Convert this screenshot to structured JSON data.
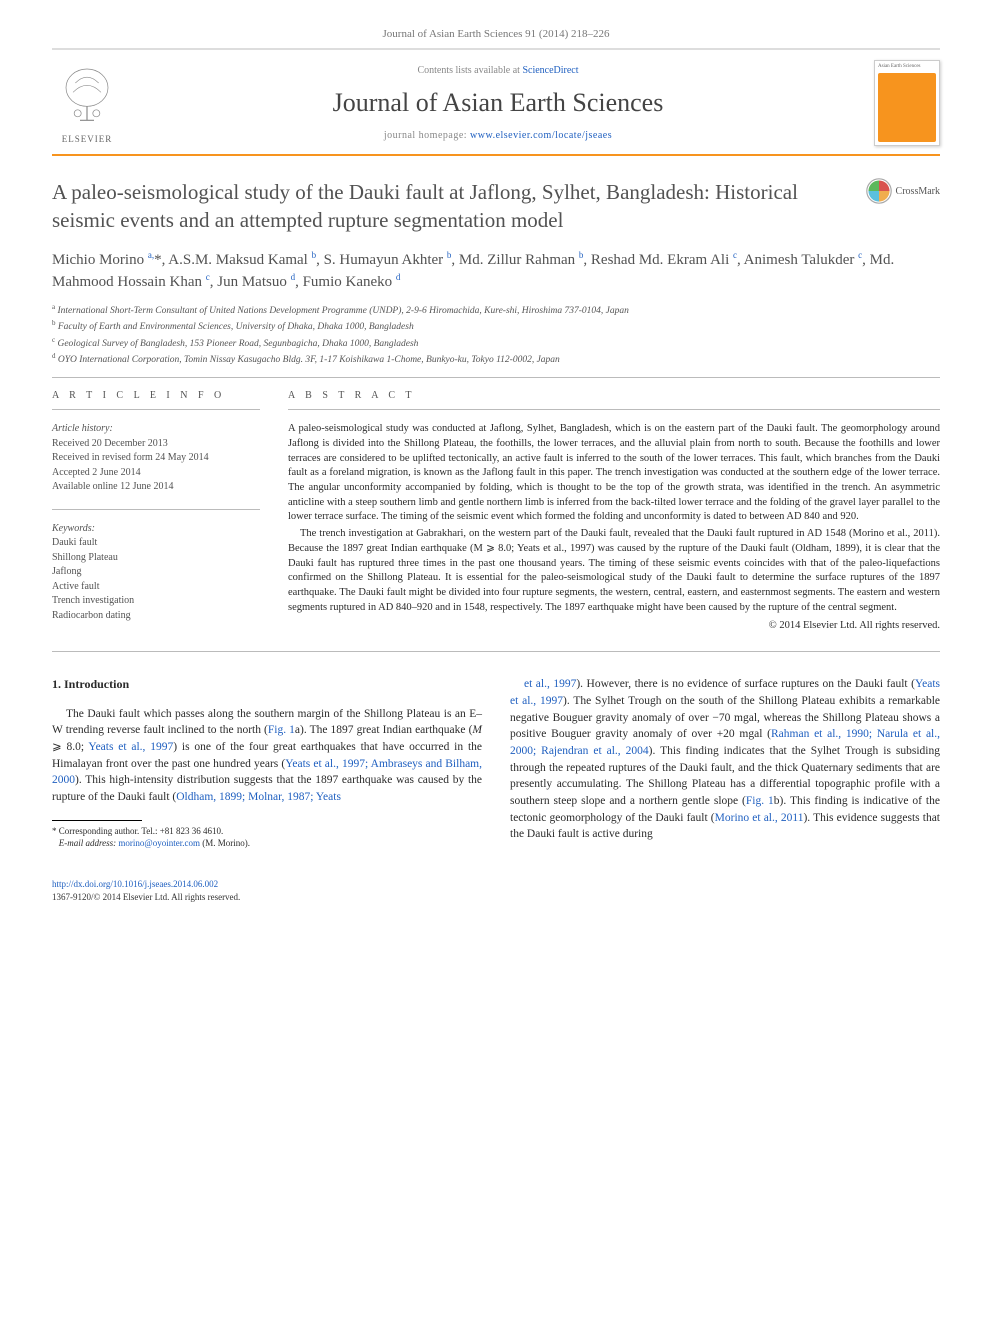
{
  "journal_ref": "Journal of Asian Earth Sciences 91 (2014) 218–226",
  "header": {
    "contents_prefix": "Contents lists available at ",
    "contents_link": "ScienceDirect",
    "journal_title": "Journal of Asian Earth Sciences",
    "homepage_prefix": "journal homepage: ",
    "homepage_link": "www.elsevier.com/locate/jseaes",
    "publisher": "ELSEVIER",
    "cover_label": "Asian Earth Sciences"
  },
  "crossmark": "CrossMark",
  "title": "A paleo-seismological study of the Dauki fault at Jaflong, Sylhet, Bangladesh: Historical seismic events and an attempted rupture segmentation model",
  "authors_html": "Michio Morino <sup class='sup-link'>a,</sup>*, A.S.M. Maksud Kamal <sup class='sup-link'>b</sup>, S. Humayun Akhter <sup class='sup-link'>b</sup>, Md. Zillur Rahman <sup class='sup-link'>b</sup>, Reshad Md. Ekram Ali <sup class='sup-link'>c</sup>, Animesh Talukder <sup class='sup-link'>c</sup>, Md. Mahmood Hossain Khan <sup class='sup-link'>c</sup>, Jun Matsuo <sup class='sup-link'>d</sup>, Fumio Kaneko <sup class='sup-link'>d</sup>",
  "affiliations": [
    "International Short-Term Consultant of United Nations Development Programme (UNDP), 2-9-6 Hiromachida, Kure-shi, Hiroshima 737-0104, Japan",
    "Faculty of Earth and Environmental Sciences, University of Dhaka, Dhaka 1000, Bangladesh",
    "Geological Survey of Bangladesh, 153 Pioneer Road, Segunbagicha, Dhaka 1000, Bangladesh",
    "OYO International Corporation, Tomin Nissay Kasugacho Bldg. 3F, 1-17 Koishikawa 1-Chome, Bunkyo-ku, Tokyo 112-0002, Japan"
  ],
  "aff_markers": [
    "a",
    "b",
    "c",
    "d"
  ],
  "article_info_label": "A R T I C L E   I N F O",
  "abstract_label": "A B S T R A C T",
  "history_head": "Article history:",
  "history": [
    "Received 20 December 2013",
    "Received in revised form 24 May 2014",
    "Accepted 2 June 2014",
    "Available online 12 June 2014"
  ],
  "keywords_head": "Keywords:",
  "keywords": [
    "Dauki fault",
    "Shillong Plateau",
    "Jaflong",
    "Active fault",
    "Trench investigation",
    "Radiocarbon dating"
  ],
  "abstract_p1": "A paleo-seismological study was conducted at Jaflong, Sylhet, Bangladesh, which is on the eastern part of the Dauki fault. The geomorphology around Jaflong is divided into the Shillong Plateau, the foothills, the lower terraces, and the alluvial plain from north to south. Because the foothills and lower terraces are considered to be uplifted tectonically, an active fault is inferred to the south of the lower terraces. This fault, which branches from the Dauki fault as a foreland migration, is known as the Jaflong fault in this paper. The trench investigation was conducted at the southern edge of the lower terrace. The angular unconformity accompanied by folding, which is thought to be the top of the growth strata, was identified in the trench. An asymmetric anticline with a steep southern limb and gentle northern limb is inferred from the back-tilted lower terrace and the folding of the gravel layer parallel to the lower terrace surface. The timing of the seismic event which formed the folding and unconformity is dated to between AD 840 and 920.",
  "abstract_p2": "The trench investigation at Gabrakhari, on the western part of the Dauki fault, revealed that the Dauki fault ruptured in AD 1548 (Morino et al., 2011). Because the 1897 great Indian earthquake (M ⩾ 8.0; Yeats et al., 1997) was caused by the rupture of the Dauki fault (Oldham, 1899), it is clear that the Dauki fault has ruptured three times in the past one thousand years. The timing of these seismic events coincides with that of the paleo-liquefactions confirmed on the Shillong Plateau. It is essential for the paleo-seismological study of the Dauki fault to determine the surface ruptures of the 1897 earthquake. The Dauki fault might be divided into four rupture segments, the western, central, eastern, and easternmost segments. The eastern and western segments ruptured in AD 840–920 and in 1548, respectively. The 1897 earthquake might have been caused by the rupture of the central segment.",
  "copyright": "© 2014 Elsevier Ltd. All rights reserved.",
  "intro_heading": "1. Introduction",
  "intro_left": "The Dauki fault which passes along the southern margin of the Shillong Plateau is an E–W trending reverse fault inclined to the north (<a href='#' class='link'>Fig. 1</a>a). The 1897 great Indian earthquake (<em>M</em> ⩾ 8.0; <a href='#' class='link'>Yeats et al., 1997</a>) is one of the four great earthquakes that have occurred in the Himalayan front over the past one hundred years (<a href='#' class='link'>Yeats et al., 1997; Ambraseys and Bilham, 2000</a>). This high-intensity distribution suggests that the 1897 earthquake was caused by the rupture of the Dauki fault (<a href='#' class='link'>Oldham, 1899; Molnar, 1987; Yeats</a>",
  "intro_right": "<a href='#' class='link'>et al., 1997</a>). However, there is no evidence of surface ruptures on the Dauki fault (<a href='#' class='link'>Yeats et al., 1997</a>). The Sylhet Trough on the south of the Shillong Plateau exhibits a remarkable negative Bouguer gravity anomaly of over −70 mgal, whereas the Shillong Plateau shows a positive Bouguer gravity anomaly of over +20 mgal (<a href='#' class='link'>Rahman et al., 1990; Narula et al., 2000; Rajendran et al., 2004</a>). This finding indicates that the Sylhet Trough is subsiding through the repeated ruptures of the Dauki fault, and the thick Quaternary sediments that are presently accumulating. The Shillong Plateau has a differential topographic profile with a southern steep slope and a northern gentle slope (<a href='#' class='link'>Fig. 1</a>b). This finding is indicative of the tectonic geomorphology of the Dauki fault (<a href='#' class='link'>Morino et al., 2011</a>). This evidence suggests that the Dauki fault is active during",
  "corr_label": "* Corresponding author. Tel.: +81 823 36 4610.",
  "email_label": "E-mail address:",
  "email": "morino@oyointer.com",
  "email_owner": "(M. Morino).",
  "doi_link": "http://dx.doi.org/10.1016/j.jseaes.2014.06.002",
  "issn_line": "1367-9120/© 2014 Elsevier Ltd. All rights reserved.",
  "colors": {
    "accent": "#f7941e",
    "link": "#2060c0",
    "text": "#2b2b2b",
    "muted": "#777"
  }
}
